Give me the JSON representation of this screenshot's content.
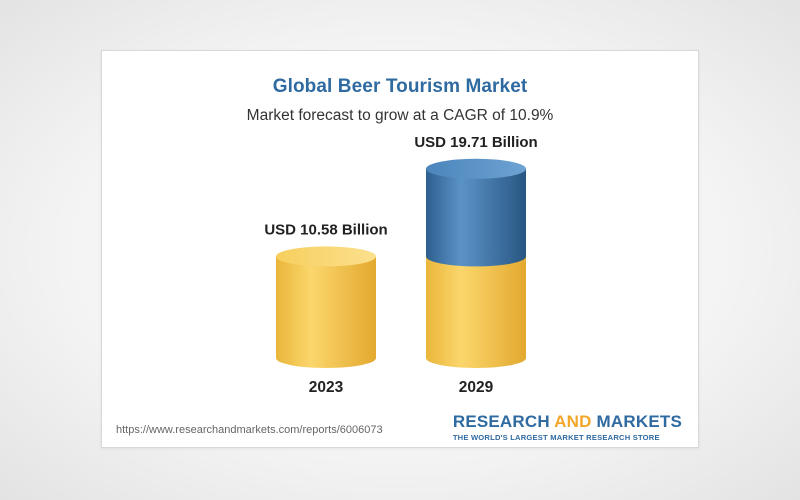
{
  "chart_data": {
    "type": "bar",
    "title": "Global Beer Tourism Market",
    "subtitle": "Market forecast to grow at a CAGR of 10.9%",
    "categories": [
      "2023",
      "2029"
    ],
    "values": [
      10.58,
      19.71
    ],
    "value_labels": [
      "USD 10.58 Billion",
      "USD 19.71 Billion"
    ],
    "unit": "USD Billion",
    "style": "cylinder",
    "colors": {
      "base": "#f4c542",
      "growth": "#3a78b3"
    }
  },
  "footer": {
    "url": "https://www.researchandmarkets.com/reports/6006073",
    "brand_word1": "RESEARCH",
    "brand_word2": "AND",
    "brand_word3": "MARKETS",
    "brand_tagline": "THE WORLD'S LARGEST MARKET RESEARCH STORE"
  }
}
